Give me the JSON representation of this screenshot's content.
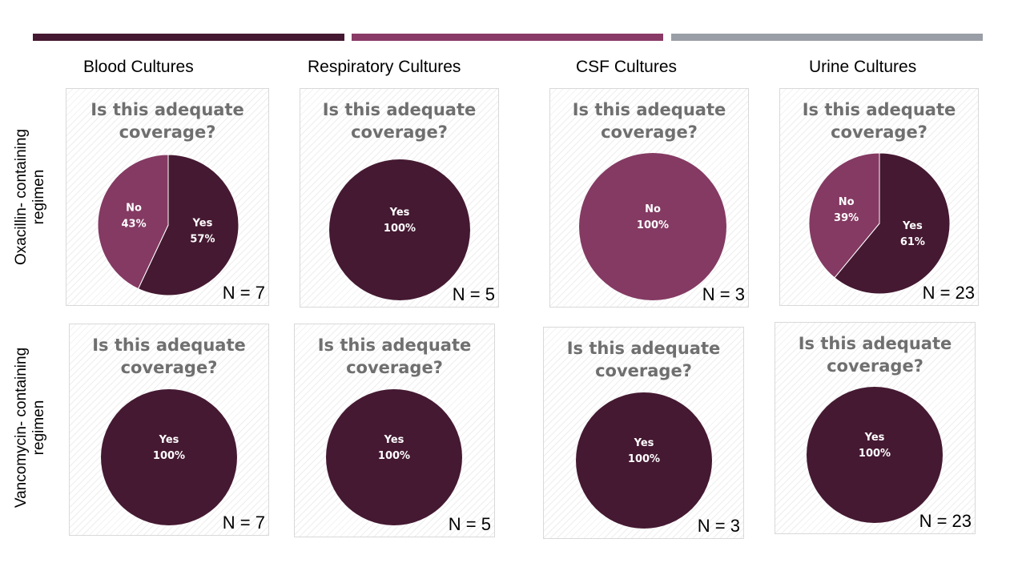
{
  "colors": {
    "yes": "#451932",
    "no": "#843a63",
    "bar1": "#451932",
    "bar2": "#8a3a67",
    "bar3": "#9a9ea6"
  },
  "column_headers": [
    "Blood Cultures",
    "Respiratory Cultures",
    "CSF Cultures",
    "Urine Cultures"
  ],
  "row_labels": [
    {
      "line1": "Oxacillin- containing",
      "line2": "regimen"
    },
    {
      "line1": "Vancomycin- containing",
      "line2": "regimen"
    }
  ],
  "chart_data": [
    {
      "type": "pie",
      "title_line1": "Is this adequate",
      "title_line2": "coverage?",
      "n_label": "N = 7",
      "slices": [
        {
          "label": "Yes",
          "value": 57,
          "display": "57%"
        },
        {
          "label": "No",
          "value": 43,
          "display": "43%"
        }
      ]
    },
    {
      "type": "pie",
      "title_line1": "Is this adequate",
      "title_line2": "coverage?",
      "n_label": "N = 5",
      "slices": [
        {
          "label": "Yes",
          "value": 100,
          "display": "100%"
        }
      ]
    },
    {
      "type": "pie",
      "title_line1": "Is this adequate",
      "title_line2": "coverage?",
      "n_label": "N = 3",
      "slices": [
        {
          "label": "No",
          "value": 100,
          "display": "100%"
        }
      ]
    },
    {
      "type": "pie",
      "title_line1": "Is this adequate",
      "title_line2": "coverage?",
      "n_label": "N = 23",
      "slices": [
        {
          "label": "Yes",
          "value": 61,
          "display": "61%"
        },
        {
          "label": "No",
          "value": 39,
          "display": "39%"
        }
      ]
    },
    {
      "type": "pie",
      "title_line1": "Is this adequate",
      "title_line2": "coverage?",
      "n_label": "N = 7",
      "slices": [
        {
          "label": "Yes",
          "value": 100,
          "display": "100%"
        }
      ]
    },
    {
      "type": "pie",
      "title_line1": "Is this adequate",
      "title_line2": "coverage?",
      "n_label": "N = 5",
      "slices": [
        {
          "label": "Yes",
          "value": 100,
          "display": "100%"
        }
      ]
    },
    {
      "type": "pie",
      "title_line1": "Is this adequate",
      "title_line2": "coverage?",
      "n_label": "N = 3",
      "slices": [
        {
          "label": "Yes",
          "value": 100,
          "display": "100%"
        }
      ]
    },
    {
      "type": "pie",
      "title_line1": "Is this adequate",
      "title_line2": "coverage?",
      "n_label": "N = 23",
      "slices": [
        {
          "label": "Yes",
          "value": 100,
          "display": "100%"
        }
      ]
    }
  ]
}
